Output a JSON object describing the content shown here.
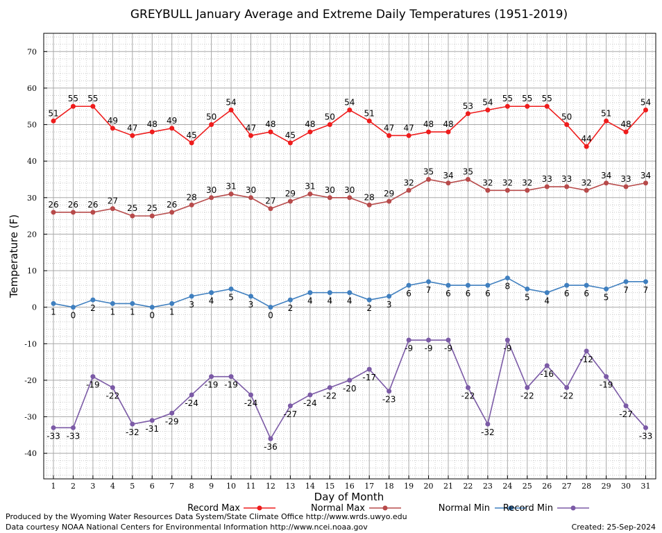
{
  "chart_data": {
    "type": "line",
    "title": "GREYBULL January Average and Extreme Daily Temperatures (1951-2019)",
    "xlabel": "Day of Month",
    "ylabel": "Temperature (F)",
    "xlim": [
      1,
      31
    ],
    "ylim": [
      -47,
      75
    ],
    "yticks": [
      -40,
      -30,
      -20,
      -10,
      0,
      10,
      20,
      30,
      40,
      50,
      60,
      70
    ],
    "x": [
      1,
      2,
      3,
      4,
      5,
      6,
      7,
      8,
      9,
      10,
      11,
      12,
      13,
      14,
      15,
      16,
      17,
      18,
      19,
      20,
      21,
      22,
      23,
      24,
      25,
      26,
      27,
      28,
      29,
      30,
      31
    ],
    "grid": true,
    "legend_position": "bottom",
    "series": [
      {
        "name": "Record Max",
        "color": "#ee1c1c",
        "label_pos": "above",
        "values": [
          51,
          55,
          55,
          49,
          47,
          48,
          49,
          45,
          50,
          54,
          47,
          48,
          45,
          48,
          50,
          54,
          51,
          47,
          47,
          48,
          48,
          53,
          54,
          55,
          55,
          55,
          50,
          44,
          51,
          48,
          54
        ]
      },
      {
        "name": "Normal Max",
        "color": "#b74a4a",
        "label_pos": "above",
        "values": [
          26,
          26,
          26,
          27,
          25,
          25,
          26,
          28,
          30,
          31,
          30,
          27,
          29,
          31,
          30,
          30,
          28,
          29,
          32,
          35,
          34,
          35,
          32,
          32,
          32,
          33,
          33,
          32,
          34,
          33,
          34
        ]
      },
      {
        "name": "Normal Min",
        "color": "#3f7fbf",
        "label_pos": "below",
        "values": [
          1,
          0,
          2,
          1,
          1,
          0,
          1,
          3,
          4,
          5,
          3,
          0,
          2,
          4,
          4,
          4,
          2,
          3,
          6,
          7,
          6,
          6,
          6,
          8,
          5,
          4,
          6,
          6,
          5,
          7,
          7
        ]
      },
      {
        "name": "Record Min",
        "color": "#7b5aa6",
        "label_pos": "below",
        "values": [
          -33,
          -33,
          -19,
          -22,
          -32,
          -31,
          -29,
          -24,
          -19,
          -19,
          -24,
          -36,
          -27,
          -24,
          -22,
          -20,
          -17,
          -23,
          -9,
          -9,
          -9,
          -22,
          -32,
          -9,
          -22,
          -16,
          -22,
          -12,
          -19,
          -27,
          -33
        ]
      }
    ]
  },
  "footer": {
    "left_line1": "Produced by the Wyoming Water Resources Data System/State Climate Office http://www.wrds.uwyo.edu",
    "left_line2": "Data courtesy NOAA National Centers for Environmental Information http://www.ncei.noaa.gov",
    "created": "Created:  25-Sep-2024"
  }
}
